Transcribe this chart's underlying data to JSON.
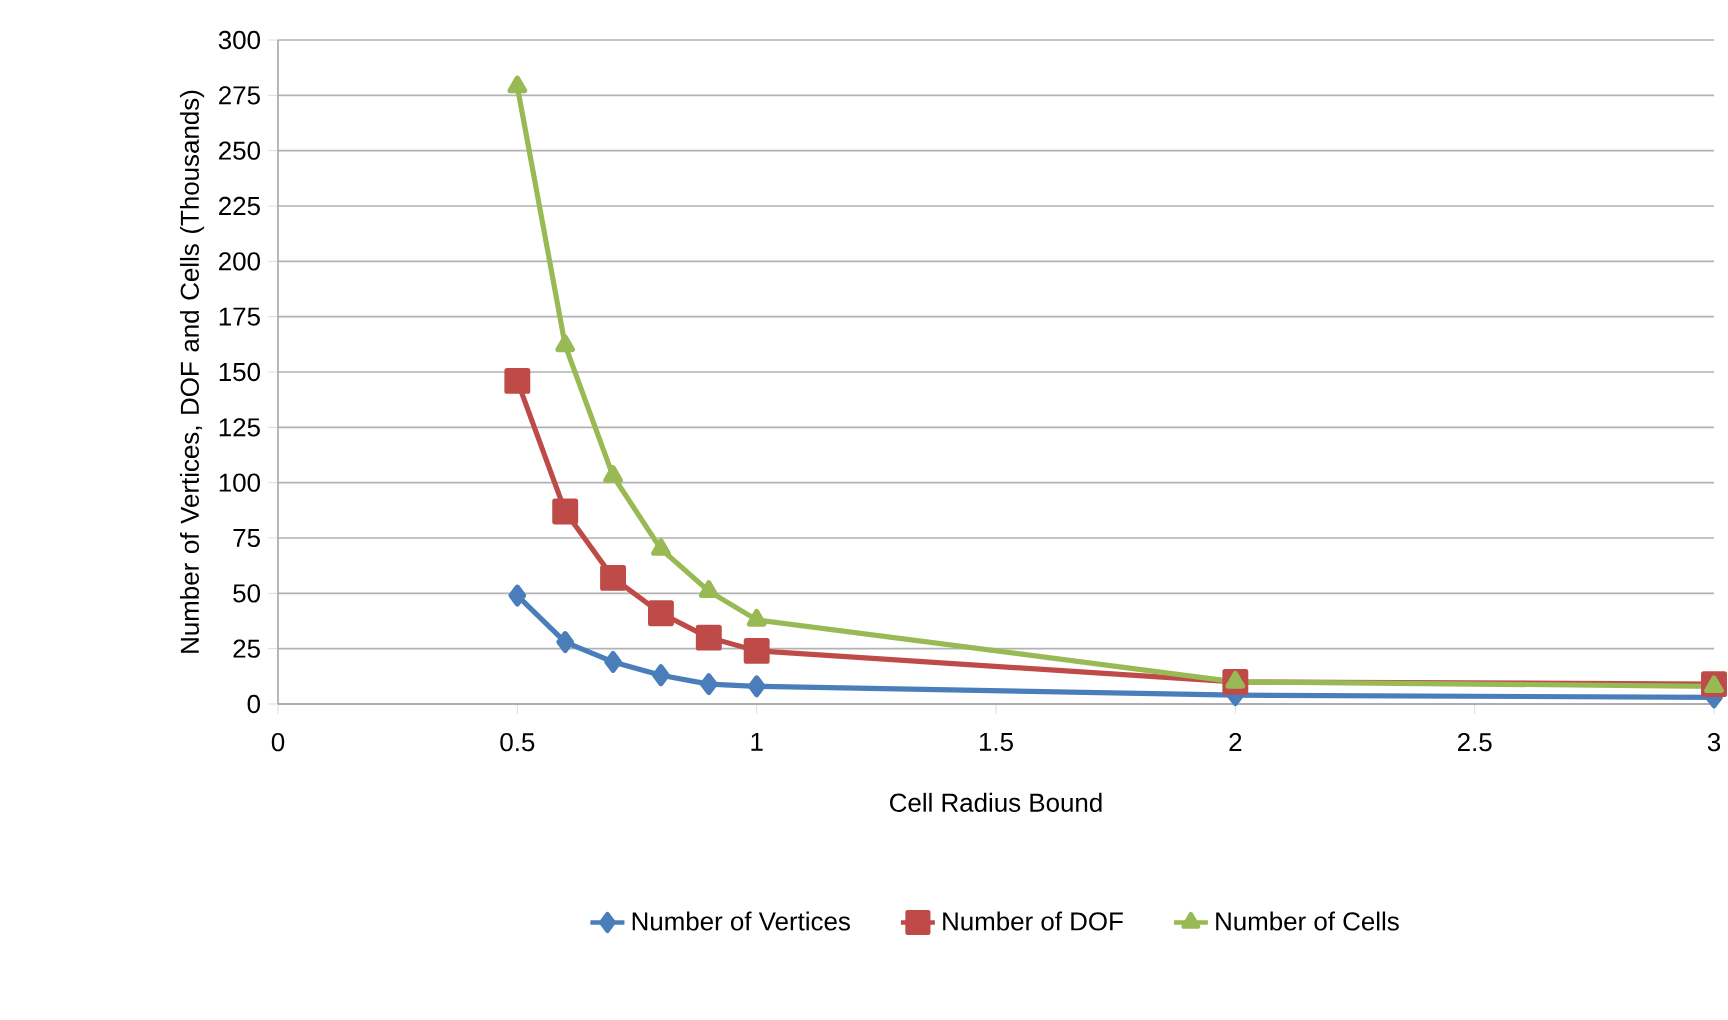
{
  "chart_data": {
    "type": "line",
    "xlabel": "Cell Radius Bound",
    "ylabel": "Number of Vertices, DOF and Cells (Thousands)",
    "x": [
      0.5,
      0.6,
      0.7,
      0.8,
      0.9,
      1,
      2,
      3
    ],
    "xlim": [
      0,
      3
    ],
    "xticks": [
      0,
      0.5,
      1,
      1.5,
      2,
      2.5,
      3
    ],
    "ylim": [
      0,
      300
    ],
    "yticks": [
      0,
      25,
      50,
      75,
      100,
      125,
      150,
      175,
      200,
      225,
      250,
      275,
      300
    ],
    "grid": "y",
    "legend": "bottom",
    "line_style": "solid",
    "series": [
      {
        "name": "Number of Vertices",
        "color": "#4a7ebb",
        "marker": "diamond",
        "values": [
          49,
          28,
          19,
          13,
          9,
          8,
          4,
          3
        ]
      },
      {
        "name": "Number of DOF",
        "color": "#be4b48",
        "marker": "square",
        "values": [
          146,
          87,
          57,
          41,
          30,
          24,
          10,
          9
        ]
      },
      {
        "name": "Number of Cells",
        "color": "#98b954",
        "marker": "triangle",
        "values": [
          279,
          162,
          103,
          70,
          51,
          38,
          10,
          8
        ]
      }
    ]
  }
}
